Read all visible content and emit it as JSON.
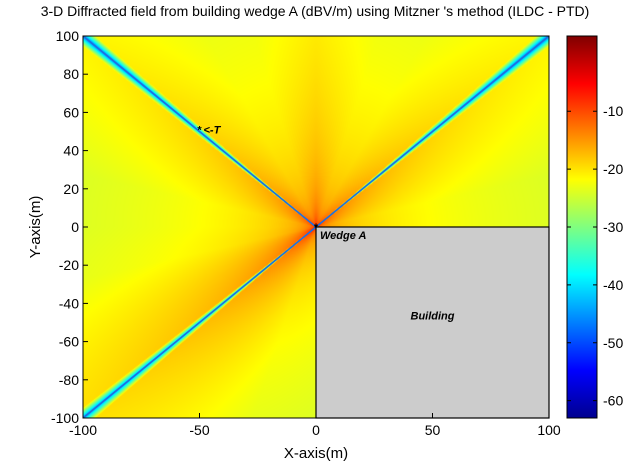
{
  "chart_data": {
    "type": "heatmap",
    "title": "3-D Diffracted field from building wedge A (dBV/m) using Mitzner 's method (ILDC - PTD)",
    "xlabel": "X-axis(m)",
    "ylabel": "Y-axis(m)",
    "xlim": [
      -100,
      100
    ],
    "ylim": [
      -100,
      100
    ],
    "xticks": [
      "-100",
      "-50",
      "0",
      "50",
      "100"
    ],
    "yticks": [
      "100",
      "80",
      "60",
      "40",
      "20",
      "0",
      "-20",
      "-40",
      "-60",
      "-80",
      "-100"
    ],
    "colorbar": {
      "range": [
        -63,
        3
      ],
      "ticks": [
        "-10",
        "-20",
        "-30",
        "-40",
        "-50",
        "-60"
      ],
      "colormap": "jet"
    },
    "grid": false,
    "building": {
      "label": "Building",
      "x_range": [
        0,
        100
      ],
      "y_range": [
        -100,
        0
      ],
      "color": "#cccccc"
    },
    "annotations": [
      {
        "text": "Wedge A",
        "x": 0,
        "y": 0
      },
      {
        "text": "<-T",
        "x": -50,
        "y": 51
      }
    ],
    "markers": [
      {
        "name": "wedge-A",
        "x": 0,
        "y": 0
      },
      {
        "name": "point-T",
        "x": -50,
        "y": 51
      }
    ],
    "shadow_boundaries": [
      {
        "from": [
          0,
          0
        ],
        "to": [
          -100,
          100
        ]
      },
      {
        "from": [
          0,
          0
        ],
        "to": [
          100,
          100
        ]
      },
      {
        "from": [
          0,
          0
        ],
        "to": [
          -100,
          -100
        ]
      }
    ]
  }
}
